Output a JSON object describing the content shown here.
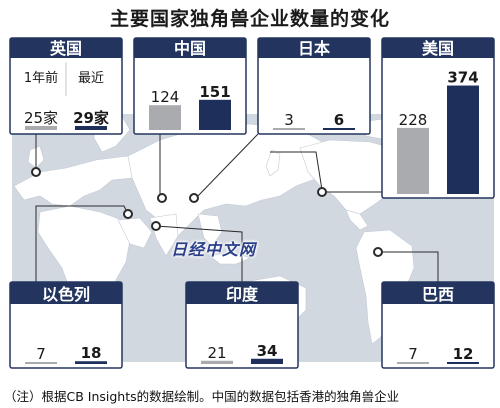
{
  "title": "主要国家独角兽企业数量的变化",
  "footnote": "（注）根据CB Insights的数据绘制。中国的数据包括香港的独角兽企业",
  "watermark": "日经中文网",
  "legend": {
    "prev_label": "1年前",
    "recent_label": "最近"
  },
  "unit": "家",
  "colors": {
    "header": "#23355f",
    "prev_bar": "#a9abae",
    "recent_bar": "#1f2f5c",
    "map_bg": "#d2d8e0",
    "land": "#ffffff",
    "frame": "#23355f"
  },
  "chart_data": {
    "type": "bar",
    "title": "主要国家独角兽企业数量的变化",
    "series_labels": [
      "1年前",
      "最近"
    ],
    "panels": [
      {
        "country": "英国",
        "values": [
          25,
          29
        ],
        "labels": [
          "25家",
          "29家"
        ]
      },
      {
        "country": "中国",
        "values": [
          124,
          151
        ],
        "labels": [
          "124",
          "151"
        ]
      },
      {
        "country": "日本",
        "values": [
          3,
          6
        ],
        "labels": [
          "3",
          "6"
        ]
      },
      {
        "country": "美国",
        "values": [
          228,
          374
        ],
        "labels": [
          "228",
          "374"
        ]
      },
      {
        "country": "以色列",
        "values": [
          7,
          18
        ],
        "labels": [
          "7",
          "18"
        ]
      },
      {
        "country": "印度",
        "values": [
          21,
          34
        ],
        "labels": [
          "21",
          "34"
        ]
      },
      {
        "country": "巴西",
        "values": [
          7,
          12
        ],
        "labels": [
          "7",
          "12"
        ]
      }
    ]
  }
}
